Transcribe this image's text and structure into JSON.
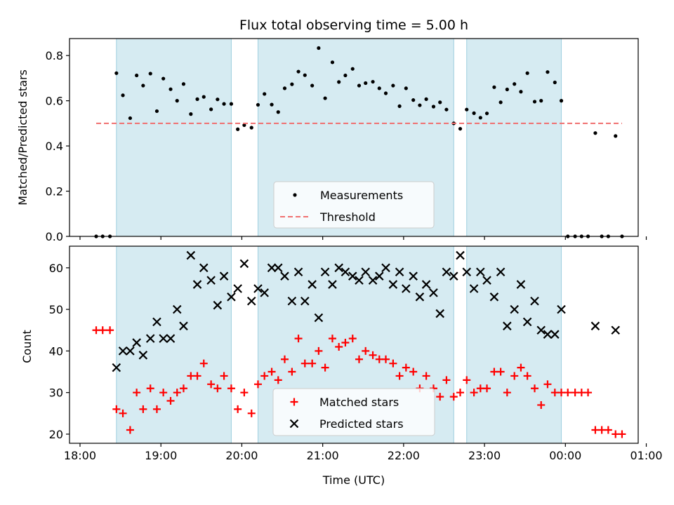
{
  "chart_data": [
    {
      "type": "scatter",
      "title": "Flux total observing time = 5.00 h",
      "xlabel": "",
      "ylabel": "Matched/Predicted stars",
      "ylim": [
        0,
        0.875
      ],
      "yticks": [
        0.0,
        0.2,
        0.4,
        0.6,
        0.8
      ],
      "ytick_labels": [
        "0.0",
        "0.2",
        "0.4",
        "0.6",
        "0.8"
      ],
      "x_unit": "time of day (UTC), hours after 18:00",
      "xlim": [
        -0.13,
        6.9
      ],
      "shaded_intervals": [
        [
          0.45,
          1.87
        ],
        [
          2.2,
          4.62
        ],
        [
          4.78,
          5.95
        ]
      ],
      "legend_position": "lower center",
      "legend": [
        "Measurements",
        "Threshold"
      ],
      "series": [
        {
          "name": "Measurements",
          "style": "dot",
          "color": "#000000",
          "points": [
            [
              0.2,
              0.0
            ],
            [
              0.28,
              0.0
            ],
            [
              0.37,
              0.0
            ],
            [
              0.45,
              0.722
            ],
            [
              0.53,
              0.624
            ],
            [
              0.62,
              0.523
            ],
            [
              0.7,
              0.712
            ],
            [
              0.78,
              0.667
            ],
            [
              0.87,
              0.72
            ],
            [
              0.95,
              0.554
            ],
            [
              1.03,
              0.698
            ],
            [
              1.12,
              0.651
            ],
            [
              1.2,
              0.6
            ],
            [
              1.28,
              0.674
            ],
            [
              1.37,
              0.541
            ],
            [
              1.45,
              0.607
            ],
            [
              1.53,
              0.617
            ],
            [
              1.62,
              0.562
            ],
            [
              1.7,
              0.606
            ],
            [
              1.78,
              0.586
            ],
            [
              1.87,
              0.586
            ],
            [
              1.95,
              0.474
            ],
            [
              2.03,
              0.492
            ],
            [
              2.12,
              0.481
            ],
            [
              2.2,
              0.582
            ],
            [
              2.28,
              0.63
            ],
            [
              2.37,
              0.583
            ],
            [
              2.45,
              0.55
            ],
            [
              2.53,
              0.655
            ],
            [
              2.62,
              0.673
            ],
            [
              2.7,
              0.729
            ],
            [
              2.78,
              0.713
            ],
            [
              2.87,
              0.667
            ],
            [
              2.95,
              0.833
            ],
            [
              3.03,
              0.611
            ],
            [
              3.12,
              0.77
            ],
            [
              3.2,
              0.683
            ],
            [
              3.28,
              0.712
            ],
            [
              3.37,
              0.741
            ],
            [
              3.45,
              0.667
            ],
            [
              3.53,
              0.678
            ],
            [
              3.62,
              0.684
            ],
            [
              3.7,
              0.655
            ],
            [
              3.78,
              0.633
            ],
            [
              3.87,
              0.667
            ],
            [
              3.95,
              0.576
            ],
            [
              4.03,
              0.655
            ],
            [
              4.12,
              0.603
            ],
            [
              4.2,
              0.58
            ],
            [
              4.28,
              0.607
            ],
            [
              4.37,
              0.574
            ],
            [
              4.45,
              0.593
            ],
            [
              4.53,
              0.561
            ],
            [
              4.62,
              0.5
            ],
            [
              4.7,
              0.476
            ],
            [
              4.78,
              0.561
            ],
            [
              4.87,
              0.545
            ],
            [
              4.95,
              0.525
            ],
            [
              5.03,
              0.544
            ],
            [
              5.12,
              0.66
            ],
            [
              5.2,
              0.593
            ],
            [
              5.28,
              0.65
            ],
            [
              5.37,
              0.674
            ],
            [
              5.45,
              0.64
            ],
            [
              5.53,
              0.722
            ],
            [
              5.62,
              0.596
            ],
            [
              5.7,
              0.6
            ],
            [
              5.78,
              0.727
            ],
            [
              5.87,
              0.681
            ],
            [
              5.95,
              0.6
            ],
            [
              6.03,
              0.0
            ],
            [
              6.12,
              0.0
            ],
            [
              6.2,
              0.0
            ],
            [
              6.28,
              0.0
            ],
            [
              6.37,
              0.457
            ],
            [
              6.45,
              0.0
            ],
            [
              6.53,
              0.0
            ],
            [
              6.62,
              0.444
            ],
            [
              6.7,
              0.0
            ]
          ]
        },
        {
          "name": "Threshold",
          "style": "dashed",
          "color": "#f07070",
          "points": [
            [
              0.2,
              0.5
            ],
            [
              6.7,
              0.5
            ]
          ]
        }
      ]
    },
    {
      "type": "scatter",
      "title": "",
      "xlabel": "Time (UTC)",
      "ylabel": "Count",
      "ylim": [
        17.8,
        65.2
      ],
      "yticks": [
        20,
        30,
        40,
        50,
        60
      ],
      "ytick_labels": [
        "20",
        "30",
        "40",
        "50",
        "60"
      ],
      "x_unit": "time of day (UTC), hours after 18:00",
      "xlim": [
        -0.13,
        6.9
      ],
      "xticks": [
        0,
        1,
        2,
        3,
        4,
        5,
        6,
        7
      ],
      "xtick_labels": [
        "18:00",
        "19:00",
        "20:00",
        "21:00",
        "22:00",
        "23:00",
        "00:00",
        "01:00"
      ],
      "shaded_intervals": [
        [
          0.45,
          1.87
        ],
        [
          2.2,
          4.62
        ],
        [
          4.78,
          5.95
        ]
      ],
      "legend_position": "lower center",
      "legend": [
        "Matched stars",
        "Predicted stars"
      ],
      "series": [
        {
          "name": "Matched stars",
          "style": "plus",
          "color": "#ff0000",
          "points": [
            [
              0.2,
              45
            ],
            [
              0.28,
              45
            ],
            [
              0.37,
              45
            ],
            [
              0.45,
              26
            ],
            [
              0.53,
              25
            ],
            [
              0.62,
              21
            ],
            [
              0.7,
              30
            ],
            [
              0.78,
              26
            ],
            [
              0.87,
              31
            ],
            [
              0.95,
              26
            ],
            [
              1.03,
              30
            ],
            [
              1.12,
              28
            ],
            [
              1.2,
              30
            ],
            [
              1.28,
              31
            ],
            [
              1.37,
              34
            ],
            [
              1.45,
              34
            ],
            [
              1.53,
              37
            ],
            [
              1.62,
              32
            ],
            [
              1.7,
              31
            ],
            [
              1.78,
              34
            ],
            [
              1.87,
              31
            ],
            [
              1.95,
              26
            ],
            [
              2.03,
              30
            ],
            [
              2.12,
              25
            ],
            [
              2.2,
              32
            ],
            [
              2.28,
              34
            ],
            [
              2.37,
              35
            ],
            [
              2.45,
              33
            ],
            [
              2.53,
              38
            ],
            [
              2.62,
              35
            ],
            [
              2.7,
              43
            ],
            [
              2.78,
              37
            ],
            [
              2.87,
              37
            ],
            [
              2.95,
              40
            ],
            [
              3.03,
              36
            ],
            [
              3.12,
              43
            ],
            [
              3.2,
              41
            ],
            [
              3.28,
              42
            ],
            [
              3.37,
              43
            ],
            [
              3.45,
              38
            ],
            [
              3.53,
              40
            ],
            [
              3.62,
              39
            ],
            [
              3.7,
              38
            ],
            [
              3.78,
              38
            ],
            [
              3.87,
              37
            ],
            [
              3.95,
              34
            ],
            [
              4.03,
              36
            ],
            [
              4.12,
              35
            ],
            [
              4.2,
              31
            ],
            [
              4.28,
              34
            ],
            [
              4.37,
              31
            ],
            [
              4.45,
              29
            ],
            [
              4.53,
              33
            ],
            [
              4.62,
              29
            ],
            [
              4.7,
              30
            ],
            [
              4.78,
              33
            ],
            [
              4.87,
              30
            ],
            [
              4.95,
              31
            ],
            [
              5.03,
              31
            ],
            [
              5.12,
              35
            ],
            [
              5.2,
              35
            ],
            [
              5.28,
              30
            ],
            [
              5.37,
              34
            ],
            [
              5.45,
              36
            ],
            [
              5.53,
              34
            ],
            [
              5.62,
              31
            ],
            [
              5.7,
              27
            ],
            [
              5.78,
              32
            ],
            [
              5.87,
              30
            ],
            [
              5.95,
              30
            ],
            [
              6.03,
              30
            ],
            [
              6.12,
              30
            ],
            [
              6.2,
              30
            ],
            [
              6.28,
              30
            ],
            [
              6.37,
              21
            ],
            [
              6.45,
              21
            ],
            [
              6.53,
              21
            ],
            [
              6.62,
              20
            ],
            [
              6.7,
              20
            ]
          ]
        },
        {
          "name": "Predicted stars",
          "style": "x",
          "color": "#000000",
          "points": [
            [
              0.45,
              36
            ],
            [
              0.53,
              40
            ],
            [
              0.62,
              40
            ],
            [
              0.7,
              42
            ],
            [
              0.78,
              39
            ],
            [
              0.87,
              43
            ],
            [
              0.95,
              47
            ],
            [
              1.03,
              43
            ],
            [
              1.12,
              43
            ],
            [
              1.2,
              50
            ],
            [
              1.28,
              46
            ],
            [
              1.37,
              63
            ],
            [
              1.45,
              56
            ],
            [
              1.53,
              60
            ],
            [
              1.62,
              57
            ],
            [
              1.7,
              51
            ],
            [
              1.78,
              58
            ],
            [
              1.87,
              53
            ],
            [
              1.95,
              55
            ],
            [
              2.03,
              61
            ],
            [
              2.12,
              52
            ],
            [
              2.2,
              55
            ],
            [
              2.28,
              54
            ],
            [
              2.37,
              60
            ],
            [
              2.45,
              60
            ],
            [
              2.53,
              58
            ],
            [
              2.62,
              52
            ],
            [
              2.7,
              59
            ],
            [
              2.78,
              52
            ],
            [
              2.87,
              56
            ],
            [
              2.95,
              48
            ],
            [
              3.03,
              59
            ],
            [
              3.12,
              56
            ],
            [
              3.2,
              60
            ],
            [
              3.28,
              59
            ],
            [
              3.37,
              58
            ],
            [
              3.45,
              57
            ],
            [
              3.53,
              59
            ],
            [
              3.62,
              57
            ],
            [
              3.7,
              58
            ],
            [
              3.78,
              60
            ],
            [
              3.87,
              56
            ],
            [
              3.95,
              59
            ],
            [
              4.03,
              55
            ],
            [
              4.12,
              58
            ],
            [
              4.2,
              53
            ],
            [
              4.28,
              56
            ],
            [
              4.37,
              54
            ],
            [
              4.45,
              49
            ],
            [
              4.53,
              59
            ],
            [
              4.62,
              58
            ],
            [
              4.7,
              63
            ],
            [
              4.78,
              59
            ],
            [
              4.87,
              55
            ],
            [
              4.95,
              59
            ],
            [
              5.03,
              57
            ],
            [
              5.12,
              53
            ],
            [
              5.2,
              59
            ],
            [
              5.28,
              46
            ],
            [
              5.37,
              50
            ],
            [
              5.45,
              56
            ],
            [
              5.53,
              47
            ],
            [
              5.62,
              52
            ],
            [
              5.7,
              45
            ],
            [
              5.78,
              44
            ],
            [
              5.87,
              44
            ],
            [
              5.95,
              50
            ],
            [
              6.37,
              46
            ],
            [
              6.62,
              45
            ]
          ]
        }
      ]
    }
  ]
}
